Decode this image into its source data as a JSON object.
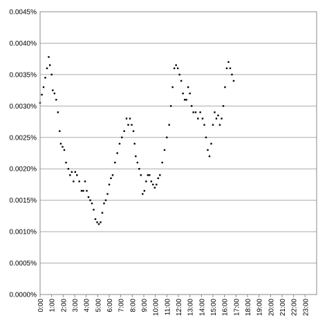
{
  "chart_data": {
    "type": "scatter",
    "title": "",
    "xlabel": "",
    "ylabel": "",
    "grid": true,
    "legend": "none",
    "x_unit": "hours",
    "xlim": [
      0,
      24
    ],
    "ylim": [
      0,
      0.0045
    ],
    "x_ticks": [
      {
        "value": 0,
        "label": "0:00"
      },
      {
        "value": 1,
        "label": "1:00"
      },
      {
        "value": 2,
        "label": "2:00"
      },
      {
        "value": 3,
        "label": "3:00"
      },
      {
        "value": 4,
        "label": "4:00"
      },
      {
        "value": 5,
        "label": "5:00"
      },
      {
        "value": 6,
        "label": "6:00"
      },
      {
        "value": 7,
        "label": "7:00"
      },
      {
        "value": 8,
        "label": "8:00"
      },
      {
        "value": 9,
        "label": "9:00"
      },
      {
        "value": 10,
        "label": "10:00"
      },
      {
        "value": 11,
        "label": "11:00"
      },
      {
        "value": 12,
        "label": "12:00"
      },
      {
        "value": 13,
        "label": "13:00"
      },
      {
        "value": 14,
        "label": "14:00"
      },
      {
        "value": 15,
        "label": "15:00"
      },
      {
        "value": 16,
        "label": "16:00"
      },
      {
        "value": 17,
        "label": "17:00"
      },
      {
        "value": 18,
        "label": "18:00"
      },
      {
        "value": 19,
        "label": "19:00"
      },
      {
        "value": 20,
        "label": "20:00"
      },
      {
        "value": 21,
        "label": "21:00"
      },
      {
        "value": 22,
        "label": "22:00"
      },
      {
        "value": 23,
        "label": "23:00"
      }
    ],
    "y_ticks": [
      {
        "value": 0,
        "label": "0.0000%"
      },
      {
        "value": 0.0005,
        "label": "0.0005%"
      },
      {
        "value": 0.001,
        "label": "0.0010%"
      },
      {
        "value": 0.0015,
        "label": "0.0015%"
      },
      {
        "value": 0.002,
        "label": "0.0020%"
      },
      {
        "value": 0.0025,
        "label": "0.0025%"
      },
      {
        "value": 0.003,
        "label": "0.0030%"
      },
      {
        "value": 0.0035,
        "label": "0.0035%"
      },
      {
        "value": 0.004,
        "label": "0.0040%"
      },
      {
        "value": 0.0045,
        "label": "0.0045%"
      }
    ],
    "series": [
      {
        "marker_color": "#000000",
        "points": [
          [
            0.0,
            0.00305
          ],
          [
            0.15,
            0.00318
          ],
          [
            0.3,
            0.0033
          ],
          [
            0.45,
            0.00345
          ],
          [
            0.6,
            0.0036
          ],
          [
            0.75,
            0.00378
          ],
          [
            0.85,
            0.00365
          ],
          [
            1.0,
            0.0035
          ],
          [
            1.1,
            0.00325
          ],
          [
            1.25,
            0.0032
          ],
          [
            1.4,
            0.0031
          ],
          [
            1.55,
            0.0029
          ],
          [
            1.7,
            0.0026
          ],
          [
            1.8,
            0.0024
          ],
          [
            1.95,
            0.00235
          ],
          [
            2.1,
            0.0023
          ],
          [
            2.25,
            0.0021
          ],
          [
            2.45,
            0.002
          ],
          [
            2.6,
            0.0019
          ],
          [
            2.75,
            0.00195
          ],
          [
            2.9,
            0.0018
          ],
          [
            3.05,
            0.00195
          ],
          [
            3.2,
            0.0019
          ],
          [
            3.4,
            0.0018
          ],
          [
            3.6,
            0.00165
          ],
          [
            3.75,
            0.00165
          ],
          [
            3.9,
            0.0018
          ],
          [
            4.05,
            0.00165
          ],
          [
            4.2,
            0.00155
          ],
          [
            4.35,
            0.0015
          ],
          [
            4.5,
            0.00145
          ],
          [
            4.65,
            0.00135
          ],
          [
            4.8,
            0.0012
          ],
          [
            4.95,
            0.00115
          ],
          [
            5.1,
            0.00112
          ],
          [
            5.25,
            0.00115
          ],
          [
            5.4,
            0.0013
          ],
          [
            5.55,
            0.00145
          ],
          [
            5.7,
            0.0015
          ],
          [
            5.85,
            0.0016
          ],
          [
            6.0,
            0.00175
          ],
          [
            6.15,
            0.00185
          ],
          [
            6.3,
            0.0019
          ],
          [
            6.5,
            0.0021
          ],
          [
            6.7,
            0.00225
          ],
          [
            6.9,
            0.0024
          ],
          [
            7.1,
            0.0025
          ],
          [
            7.3,
            0.0026
          ],
          [
            7.5,
            0.0028
          ],
          [
            7.65,
            0.0027
          ],
          [
            7.8,
            0.0028
          ],
          [
            7.95,
            0.0027
          ],
          [
            8.1,
            0.0026
          ],
          [
            8.2,
            0.0024
          ],
          [
            8.3,
            0.0022
          ],
          [
            8.45,
            0.0021
          ],
          [
            8.6,
            0.002
          ],
          [
            8.75,
            0.0019
          ],
          [
            8.9,
            0.0016
          ],
          [
            9.05,
            0.00165
          ],
          [
            9.2,
            0.0018
          ],
          [
            9.35,
            0.0019
          ],
          [
            9.5,
            0.0019
          ],
          [
            9.65,
            0.0018
          ],
          [
            9.8,
            0.00175
          ],
          [
            9.95,
            0.0017
          ],
          [
            10.1,
            0.00175
          ],
          [
            10.25,
            0.00185
          ],
          [
            10.4,
            0.0019
          ],
          [
            10.6,
            0.0021
          ],
          [
            10.8,
            0.0023
          ],
          [
            11.0,
            0.0025
          ],
          [
            11.2,
            0.0027
          ],
          [
            11.35,
            0.003
          ],
          [
            11.5,
            0.0033
          ],
          [
            11.65,
            0.0036
          ],
          [
            11.8,
            0.00365
          ],
          [
            11.95,
            0.0036
          ],
          [
            12.1,
            0.0035
          ],
          [
            12.25,
            0.0034
          ],
          [
            12.4,
            0.0032
          ],
          [
            12.55,
            0.0031
          ],
          [
            12.7,
            0.0031
          ],
          [
            12.85,
            0.0033
          ],
          [
            13.0,
            0.0032
          ],
          [
            13.15,
            0.003
          ],
          [
            13.3,
            0.0029
          ],
          [
            13.5,
            0.0029
          ],
          [
            13.7,
            0.0028
          ],
          [
            13.9,
            0.0029
          ],
          [
            14.1,
            0.0028
          ],
          [
            14.25,
            0.0027
          ],
          [
            14.4,
            0.0025
          ],
          [
            14.55,
            0.0023
          ],
          [
            14.7,
            0.0022
          ],
          [
            14.85,
            0.0024
          ],
          [
            15.0,
            0.0027
          ],
          [
            15.15,
            0.0029
          ],
          [
            15.3,
            0.0028
          ],
          [
            15.45,
            0.00285
          ],
          [
            15.6,
            0.0027
          ],
          [
            15.75,
            0.0028
          ],
          [
            15.9,
            0.003
          ],
          [
            16.05,
            0.0033
          ],
          [
            16.2,
            0.0036
          ],
          [
            16.35,
            0.0037
          ],
          [
            16.5,
            0.0036
          ],
          [
            16.65,
            0.0035
          ],
          [
            16.8,
            0.0034
          ]
        ]
      }
    ]
  }
}
